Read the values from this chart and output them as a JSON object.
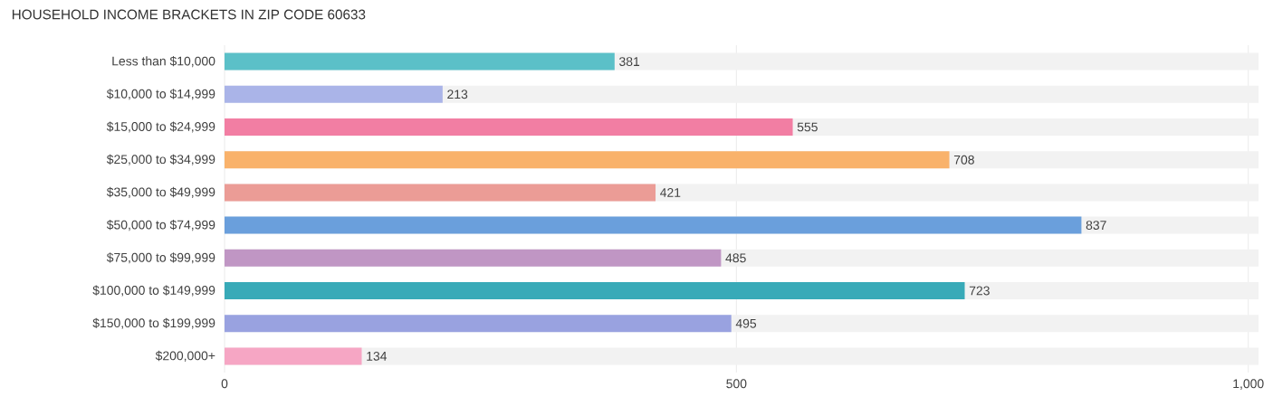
{
  "chart_data": {
    "type": "bar",
    "orientation": "horizontal",
    "title": "HOUSEHOLD INCOME BRACKETS IN ZIP CODE 60633",
    "categories": [
      "Less than $10,000",
      "$10,000 to $14,999",
      "$15,000 to $24,999",
      "$25,000 to $34,999",
      "$35,000 to $49,999",
      "$50,000 to $74,999",
      "$75,000 to $99,999",
      "$100,000 to $149,999",
      "$150,000 to $199,999",
      "$200,000+"
    ],
    "values": [
      381,
      213,
      555,
      708,
      421,
      837,
      485,
      723,
      495,
      134
    ],
    "colors": [
      "#5bc0c8",
      "#aab4e8",
      "#f27ea3",
      "#f9b26b",
      "#eb9c96",
      "#6a9fdc",
      "#c096c4",
      "#38aab8",
      "#99a2e0",
      "#f6a6c4"
    ],
    "xlim": [
      0,
      1010
    ],
    "xticks": [
      0,
      500,
      {
        "value": 1000,
        "label": "1,000"
      }
    ],
    "grid": "x",
    "data_labels": true
  }
}
